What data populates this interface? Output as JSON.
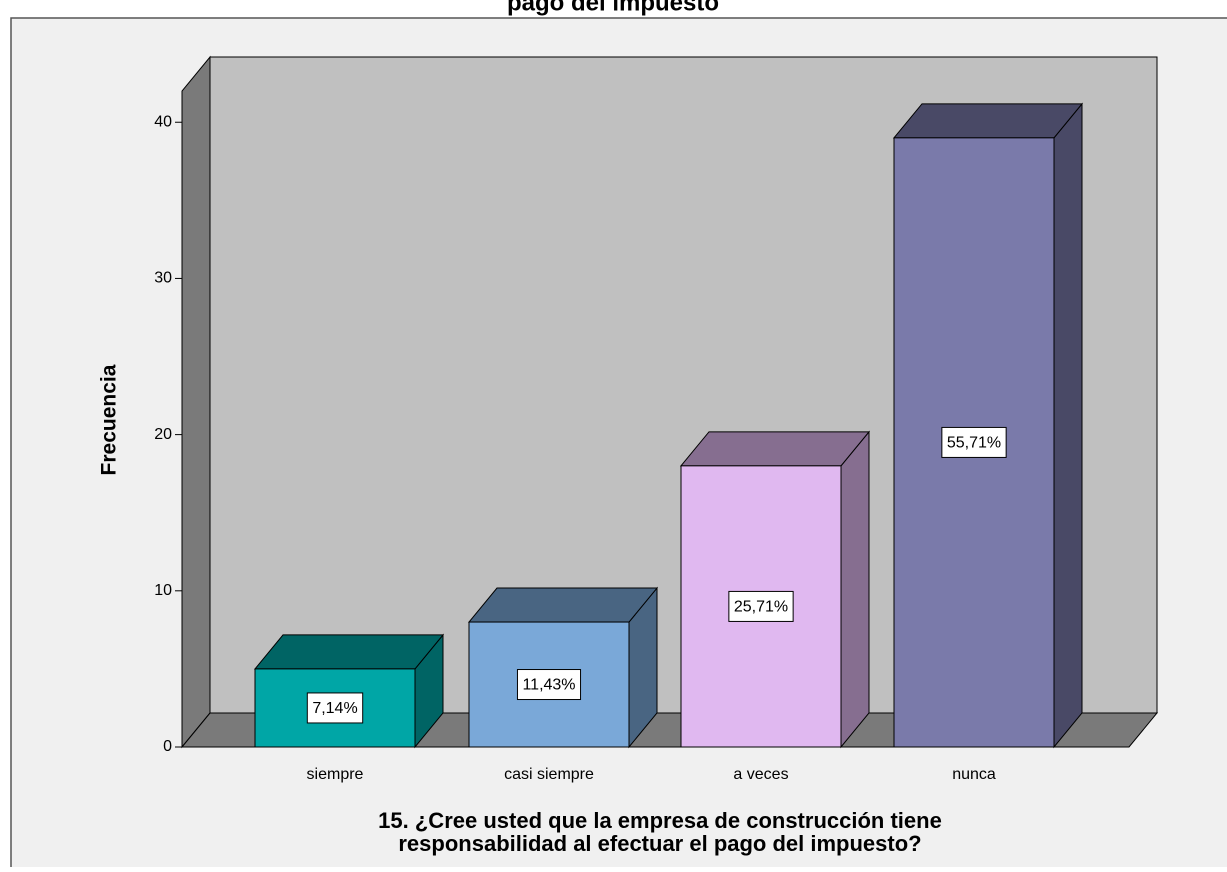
{
  "chart_data": {
    "type": "bar3d",
    "title": "pago del impuesto",
    "ylabel": "Frecuencia",
    "xlabel": [
      "15. ¿Cree usted que la empresa de construcción tiene",
      "responsabilidad al efectuar el pago del impuesto?"
    ],
    "categories": [
      "siempre",
      "casi siempre",
      "a veces",
      "nunca"
    ],
    "values": [
      5,
      8,
      18,
      39
    ],
    "value_labels": [
      "7,14%",
      "11,43%",
      "25,71%",
      "55,71%"
    ],
    "colors": [
      "#00a6a6",
      "#7aa8d8",
      "#e0b8f0",
      "#7a7aaa"
    ],
    "ylim": [
      0,
      42
    ],
    "yticks": [
      0,
      10,
      20,
      30,
      40
    ]
  }
}
